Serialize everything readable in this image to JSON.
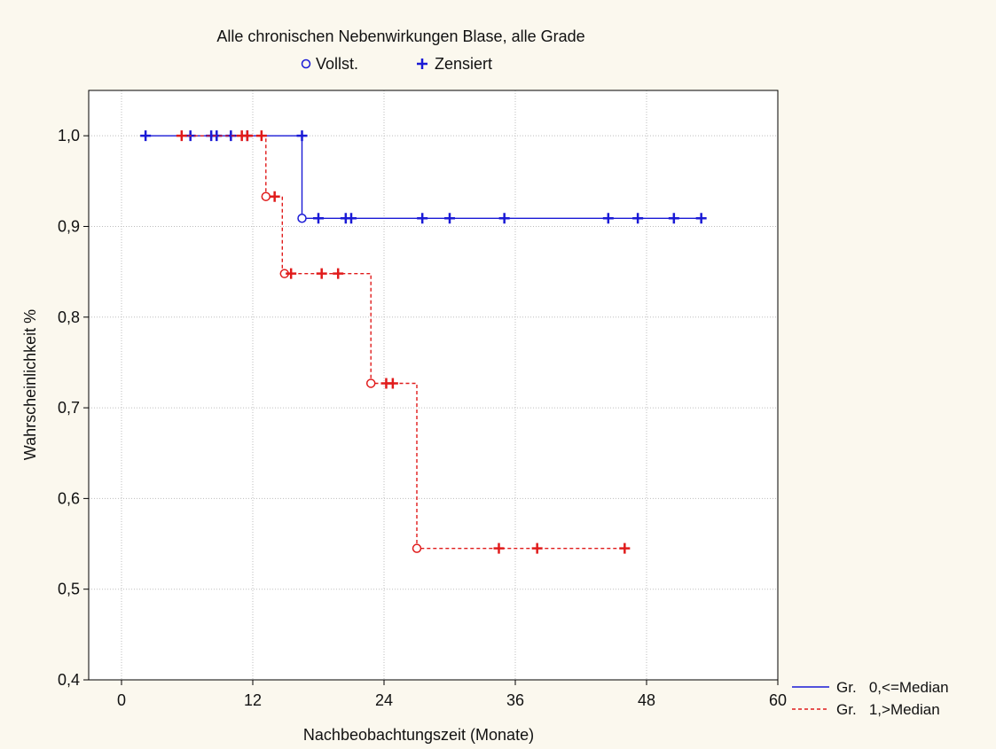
{
  "colors": {
    "background": "#fbf8ee",
    "plot_background": "#ffffff",
    "group0": "#1a1ad6",
    "group1": "#e01b1b",
    "grid": "#bdbdbd"
  },
  "chart_data": {
    "type": "line",
    "subtype": "kaplan-meier-step",
    "title": "Alle chronischen Nebenwirkungen Blase, alle Grade",
    "marker_legend": {
      "complete": "Vollst.",
      "censored": "Zensiert"
    },
    "xlabel": "Nachbeobachtungszeit (Monate)",
    "ylabel": "Wahrscheinlichkeit %",
    "xlim": [
      -3,
      60
    ],
    "ylim": [
      0.4,
      1.05
    ],
    "x_ticks": [
      0,
      12,
      24,
      36,
      48,
      60
    ],
    "x_tick_labels": [
      "0",
      "12",
      "24",
      "36",
      "48",
      "60"
    ],
    "y_ticks": [
      0.4,
      0.5,
      0.6,
      0.7,
      0.8,
      0.9,
      1.0
    ],
    "y_tick_labels": [
      "0,4",
      "0,5",
      "0,6",
      "0,7",
      "0,8",
      "0,9",
      "1,0"
    ],
    "grid": true,
    "legend_position": "bottom-right, outside plot",
    "series": [
      {
        "name": "Gr.   0,<=Median",
        "line_style": "solid",
        "color": "#1a1ad6",
        "steps": [
          {
            "x": 2,
            "y": 1.0
          },
          {
            "x": 16.5,
            "y": 1.0
          },
          {
            "x": 16.5,
            "y": 0.909
          },
          {
            "x": 53,
            "y": 0.909
          }
        ],
        "events": [
          {
            "x": 16.5,
            "y": 0.909
          }
        ],
        "censored": [
          {
            "x": 2.2,
            "y": 1.0
          },
          {
            "x": 6.3,
            "y": 1.0
          },
          {
            "x": 8.2,
            "y": 1.0
          },
          {
            "x": 8.7,
            "y": 1.0
          },
          {
            "x": 10,
            "y": 1.0
          },
          {
            "x": 11.5,
            "y": 1.0
          },
          {
            "x": 16.5,
            "y": 1.0
          },
          {
            "x": 18,
            "y": 0.909
          },
          {
            "x": 20.5,
            "y": 0.909
          },
          {
            "x": 21,
            "y": 0.909
          },
          {
            "x": 27.5,
            "y": 0.909
          },
          {
            "x": 30,
            "y": 0.909
          },
          {
            "x": 35,
            "y": 0.909
          },
          {
            "x": 44.5,
            "y": 0.909
          },
          {
            "x": 47.2,
            "y": 0.909
          },
          {
            "x": 50.5,
            "y": 0.909
          },
          {
            "x": 53,
            "y": 0.909
          }
        ]
      },
      {
        "name": "Gr.   1,>Median",
        "line_style": "dashed",
        "color": "#e01b1b",
        "steps": [
          {
            "x": 5.5,
            "y": 1.0
          },
          {
            "x": 13.2,
            "y": 1.0
          },
          {
            "x": 13.2,
            "y": 0.933
          },
          {
            "x": 14.7,
            "y": 0.933
          },
          {
            "x": 14.7,
            "y": 0.848
          },
          {
            "x": 22.8,
            "y": 0.848
          },
          {
            "x": 22.8,
            "y": 0.727
          },
          {
            "x": 27,
            "y": 0.727
          },
          {
            "x": 27,
            "y": 0.545
          },
          {
            "x": 46,
            "y": 0.545
          }
        ],
        "events": [
          {
            "x": 13.2,
            "y": 0.933
          },
          {
            "x": 14.9,
            "y": 0.848
          },
          {
            "x": 22.8,
            "y": 0.727
          },
          {
            "x": 27,
            "y": 0.545
          }
        ],
        "censored": [
          {
            "x": 5.5,
            "y": 1.0
          },
          {
            "x": 11,
            "y": 1.0
          },
          {
            "x": 11.5,
            "y": 1.0
          },
          {
            "x": 12.8,
            "y": 1.0
          },
          {
            "x": 14,
            "y": 0.933
          },
          {
            "x": 15.5,
            "y": 0.848
          },
          {
            "x": 18.3,
            "y": 0.848
          },
          {
            "x": 19.8,
            "y": 0.848
          },
          {
            "x": 24.2,
            "y": 0.727
          },
          {
            "x": 24.8,
            "y": 0.727
          },
          {
            "x": 34.5,
            "y": 0.545
          },
          {
            "x": 38,
            "y": 0.545
          },
          {
            "x": 46,
            "y": 0.545
          }
        ]
      }
    ]
  }
}
